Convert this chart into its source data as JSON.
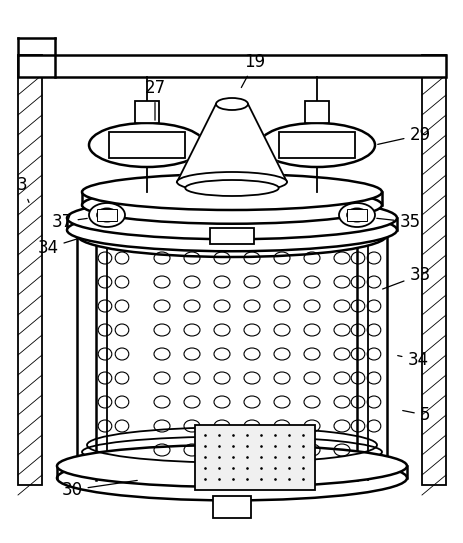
{
  "bg_color": "#ffffff",
  "line_color": "#000000",
  "figsize": [
    4.64,
    5.43
  ],
  "dpi": 100
}
